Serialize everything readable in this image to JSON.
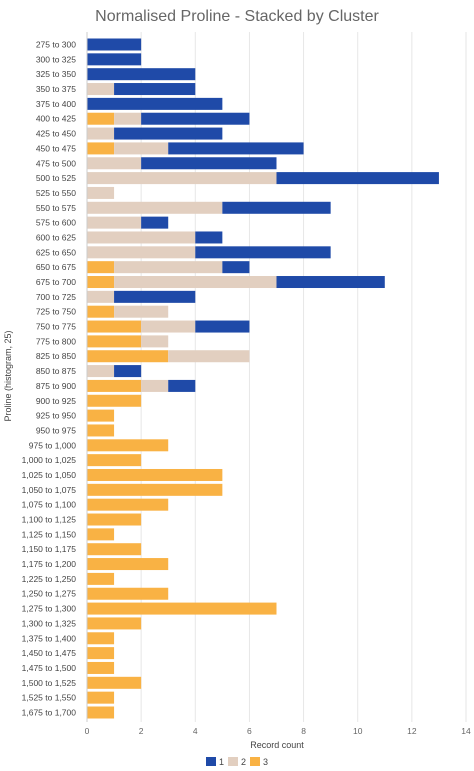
{
  "chart_data": {
    "type": "bar",
    "orientation": "horizontal",
    "stacked": true,
    "title": "Normalised Proline - Stacked by Cluster",
    "xlabel": "Record count",
    "ylabel": "Proline (histogram, 25)",
    "xlim": [
      0,
      14
    ],
    "xticks": [
      0,
      2,
      4,
      6,
      8,
      10,
      12,
      14
    ],
    "grid": true,
    "legend": "bottom",
    "categories": [
      "275 to 300",
      "300 to 325",
      "325 to 350",
      "350 to 375",
      "375 to 400",
      "400 to 425",
      "425 to 450",
      "450 to 475",
      "475 to 500",
      "500 to 525",
      "525 to 550",
      "550 to 575",
      "575 to 600",
      "600 to 625",
      "625 to 650",
      "650 to 675",
      "675 to 700",
      "700 to 725",
      "725 to 750",
      "750 to 775",
      "775 to 800",
      "825 to 850",
      "850 to 875",
      "875 to 900",
      "900 to 925",
      "925 to 950",
      "950 to 975",
      "975 to 1,000",
      "1,000 to 1,025",
      "1,025 to 1,050",
      "1,050 to 1,075",
      "1,075 to 1,100",
      "1,100 to 1,125",
      "1,125 to 1,150",
      "1,150 to 1,175",
      "1,175 to 1,200",
      "1,225 to 1,250",
      "1,250 to 1,275",
      "1,275 to 1,300",
      "1,300 to 1,325",
      "1,375 to 1,400",
      "1,450 to 1,475",
      "1,475 to 1,500",
      "1,500 to 1,525",
      "1,525 to 1,550",
      "1,675 to 1,700"
    ],
    "stack_order": [
      "3",
      "2",
      "1"
    ],
    "series": [
      {
        "name": "1",
        "color": "#1f4aa8",
        "values": [
          2,
          2,
          4,
          3,
          5,
          4,
          4,
          5,
          5,
          6,
          0,
          4,
          1,
          1,
          5,
          1,
          4,
          3,
          0,
          2,
          0,
          0,
          1,
          1,
          0,
          0,
          0,
          0,
          0,
          0,
          0,
          0,
          0,
          0,
          0,
          0,
          0,
          0,
          0,
          0,
          0,
          0,
          0,
          0,
          0,
          0
        ]
      },
      {
        "name": "2",
        "color": "#e2cfc0",
        "values": [
          0,
          0,
          0,
          1,
          0,
          1,
          1,
          2,
          2,
          7,
          1,
          5,
          2,
          4,
          4,
          4,
          6,
          1,
          2,
          2,
          1,
          3,
          1,
          1,
          0,
          0,
          0,
          0,
          0,
          0,
          0,
          0,
          0,
          0,
          0,
          0,
          0,
          0,
          0,
          0,
          0,
          0,
          0,
          0,
          0,
          0
        ]
      },
      {
        "name": "3",
        "color": "#f9b244",
        "values": [
          0,
          0,
          0,
          0,
          0,
          1,
          0,
          1,
          0,
          0,
          0,
          0,
          0,
          0,
          0,
          1,
          1,
          0,
          1,
          2,
          2,
          3,
          0,
          2,
          2,
          1,
          1,
          3,
          2,
          5,
          5,
          3,
          2,
          1,
          2,
          3,
          1,
          3,
          7,
          2,
          1,
          1,
          1,
          2,
          1,
          1
        ]
      }
    ]
  }
}
